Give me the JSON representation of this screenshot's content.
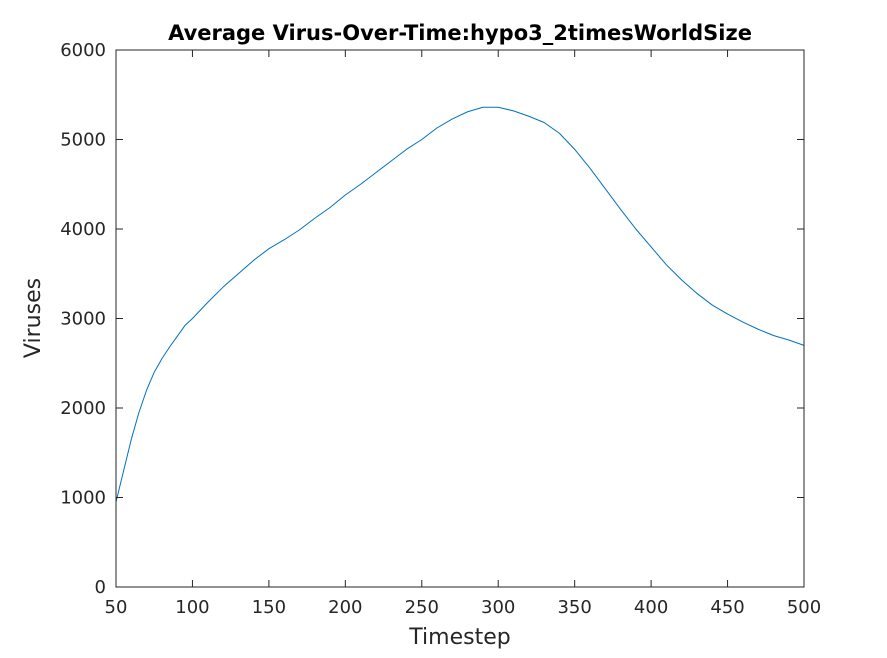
{
  "chart_data": {
    "type": "line",
    "title": "Average Virus-Over-Time:hypo3_2timesWorldSize",
    "xlabel": "Timestep",
    "ylabel": "Viruses",
    "xlim": [
      50,
      500
    ],
    "ylim": [
      0,
      6000
    ],
    "xticks": [
      "50",
      "100",
      "150",
      "200",
      "250",
      "300",
      "350",
      "400",
      "450",
      "500"
    ],
    "yticks": [
      "0",
      "1000",
      "2000",
      "3000",
      "4000",
      "5000",
      "6000"
    ],
    "grid": false,
    "legend": "none",
    "series": [
      {
        "color": "#0072bd",
        "x": [
          50,
          55,
          60,
          65,
          70,
          75,
          80,
          85,
          90,
          95,
          100,
          110,
          120,
          130,
          140,
          150,
          160,
          170,
          180,
          190,
          200,
          210,
          220,
          230,
          240,
          250,
          260,
          270,
          280,
          290,
          300,
          310,
          320,
          330,
          340,
          350,
          360,
          370,
          380,
          390,
          400,
          410,
          420,
          430,
          440,
          450,
          460,
          470,
          480,
          490,
          500
        ],
        "y": [
          950,
          1300,
          1650,
          1950,
          2200,
          2400,
          2550,
          2680,
          2800,
          2920,
          3000,
          3180,
          3350,
          3500,
          3650,
          3780,
          3880,
          3990,
          4120,
          4240,
          4380,
          4500,
          4630,
          4760,
          4890,
          5000,
          5130,
          5230,
          5310,
          5360,
          5360,
          5320,
          5260,
          5190,
          5070,
          4890,
          4680,
          4450,
          4220,
          4000,
          3800,
          3600,
          3430,
          3280,
          3150,
          3050,
          2960,
          2880,
          2810,
          2760,
          2700
        ]
      }
    ]
  }
}
